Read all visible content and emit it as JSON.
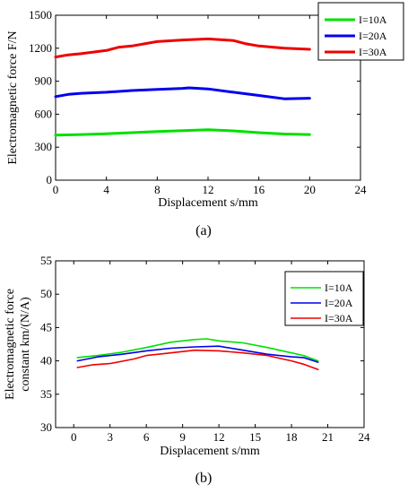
{
  "chart_data": [
    {
      "type": "line",
      "panel_label": "(a)",
      "xlabel": "Displacement s/mm",
      "ylabel": "Electromagnetic force F/N",
      "xlim": [
        0,
        24
      ],
      "ylim": [
        0,
        1500
      ],
      "xticks": [
        0,
        4,
        8,
        12,
        16,
        20,
        24
      ],
      "yticks": [
        0,
        300,
        600,
        900,
        1200,
        1500
      ],
      "xtick_labels": [
        "0",
        "4",
        "8",
        "12",
        "16",
        "20",
        "24"
      ],
      "ytick_labels": [
        "0",
        "300",
        "600",
        "900",
        "1200",
        "1500"
      ],
      "grid": false,
      "legend_position": "top-right",
      "series": [
        {
          "name": "I=10A",
          "color": "#00e000",
          "x": [
            0,
            2,
            4,
            6,
            8,
            10,
            12,
            14,
            16,
            18,
            20
          ],
          "values": [
            410,
            415,
            422,
            432,
            442,
            450,
            458,
            448,
            432,
            420,
            415
          ]
        },
        {
          "name": "I=20A",
          "color": "#0000ee",
          "x": [
            0,
            1,
            2,
            4,
            6,
            8,
            10,
            10.5,
            12,
            14,
            16,
            18,
            20
          ],
          "values": [
            760,
            780,
            790,
            800,
            815,
            825,
            835,
            840,
            830,
            800,
            770,
            740,
            745
          ]
        },
        {
          "name": "I=30A",
          "color": "#ee0000",
          "x": [
            0,
            1,
            2,
            4,
            5,
            6,
            8,
            10,
            12,
            14,
            15,
            16,
            18,
            20
          ],
          "values": [
            1120,
            1140,
            1150,
            1180,
            1210,
            1220,
            1260,
            1275,
            1285,
            1270,
            1240,
            1220,
            1200,
            1190
          ]
        }
      ]
    },
    {
      "type": "line",
      "panel_label": "(b)",
      "xlabel": "Displacement s/mm",
      "ylabel_line1": "Electromagnetic force",
      "ylabel_line2": "constant km/(N/A)",
      "xlim": [
        -1.5,
        24
      ],
      "ylim": [
        30,
        55
      ],
      "xticks": [
        0,
        3,
        6,
        9,
        12,
        15,
        18,
        21,
        24
      ],
      "yticks": [
        30,
        35,
        40,
        45,
        50,
        55
      ],
      "xtick_labels": [
        "0",
        "3",
        "6",
        "9",
        "12",
        "15",
        "18",
        "21",
        "24"
      ],
      "ytick_labels": [
        "30",
        "35",
        "40",
        "45",
        "50",
        "55"
      ],
      "grid": false,
      "legend_position": "top-right",
      "series": [
        {
          "name": "I=10A",
          "color": "#00e000",
          "x": [
            0.3,
            2,
            4,
            6,
            8,
            9,
            10,
            11,
            12,
            14,
            16,
            18,
            19,
            20.2
          ],
          "values": [
            40.5,
            40.8,
            41.3,
            42,
            42.8,
            43,
            43.2,
            43.3,
            43,
            42.7,
            42,
            41.2,
            40.8,
            40.0
          ]
        },
        {
          "name": "I=20A",
          "color": "#0000ee",
          "x": [
            0.3,
            2,
            4,
            6,
            8,
            10,
            12,
            14,
            16,
            18,
            19,
            20.2
          ],
          "values": [
            40.0,
            40.6,
            41.0,
            41.5,
            41.9,
            42.1,
            42.2,
            41.6,
            41.0,
            40.6,
            40.5,
            39.8
          ]
        },
        {
          "name": "I=30A",
          "color": "#ee0000",
          "x": [
            0.3,
            1.5,
            3,
            5,
            6,
            7,
            8,
            10,
            12,
            14,
            16,
            18,
            19,
            20.2
          ],
          "values": [
            39.0,
            39.4,
            39.6,
            40.3,
            40.8,
            41.0,
            41.2,
            41.6,
            41.5,
            41.2,
            40.8,
            40.0,
            39.5,
            38.7
          ]
        }
      ]
    }
  ]
}
